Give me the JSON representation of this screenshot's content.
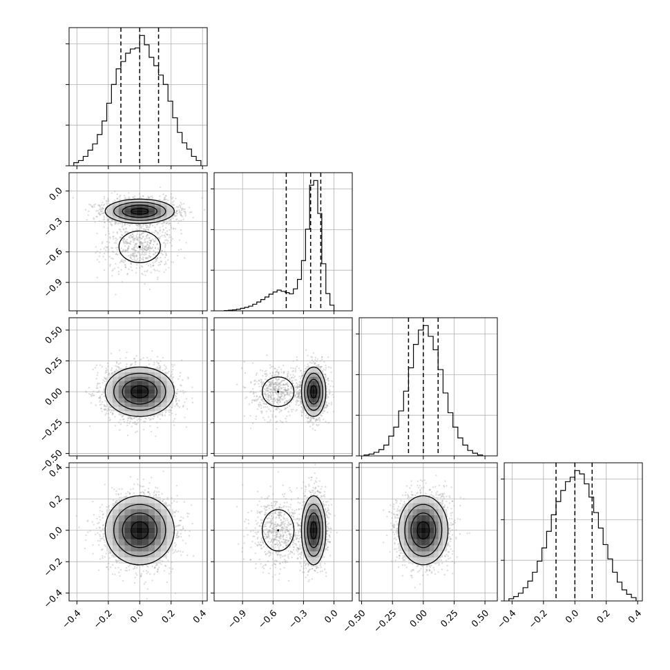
{
  "chart_data": {
    "type": "corner",
    "parameters": [
      {
        "xlim": [
          -0.45,
          0.43
        ],
        "ticks": [
          -0.4,
          -0.2,
          0.0,
          0.2,
          0.4
        ],
        "tick_labels": [
          "−0.4",
          "−0.2",
          "0.0",
          "0.2",
          "0.4"
        ],
        "quantiles": [
          -0.12,
          0.0,
          0.12
        ],
        "hist": {
          "edges": [
            -0.42,
            -0.39,
            -0.36,
            -0.33,
            -0.3,
            -0.27,
            -0.24,
            -0.21,
            -0.18,
            -0.15,
            -0.12,
            -0.09,
            -0.06,
            -0.03,
            0.0,
            0.03,
            0.06,
            0.09,
            0.12,
            0.15,
            0.18,
            0.21,
            0.24,
            0.27,
            0.3,
            0.33,
            0.36,
            0.39
          ],
          "counts": [
            3,
            5,
            9,
            15,
            21,
            30,
            43,
            60,
            78,
            93,
            100,
            108,
            112,
            113,
            125,
            116,
            104,
            96,
            87,
            78,
            62,
            46,
            32,
            22,
            16,
            9,
            5
          ]
        }
      },
      {
        "xlim": [
          -1.18,
          0.18
        ],
        "ticks": [
          -0.9,
          -0.6,
          -0.3,
          0.0
        ],
        "tick_labels": [
          "−0.9",
          "−0.6",
          "−0.3",
          "0.0"
        ],
        "quantiles": [
          -0.47,
          -0.23,
          -0.13
        ],
        "hist": {
          "edges": [
            -1.08,
            -1.04,
            -1.0,
            -0.96,
            -0.92,
            -0.88,
            -0.84,
            -0.8,
            -0.76,
            -0.72,
            -0.68,
            -0.64,
            -0.6,
            -0.56,
            -0.52,
            -0.48,
            -0.44,
            -0.4,
            -0.36,
            -0.32,
            -0.28,
            -0.24,
            -0.2,
            -0.16,
            -0.12,
            -0.08,
            -0.04,
            0.0
          ],
          "counts": [
            1,
            2,
            3,
            5,
            8,
            11,
            15,
            21,
            28,
            36,
            44,
            53,
            60,
            66,
            62,
            58,
            54,
            70,
            100,
            160,
            260,
            400,
            415,
            310,
            150,
            55,
            18
          ]
        }
      },
      {
        "xlim": [
          -0.52,
          0.6
        ],
        "ticks": [
          -0.5,
          -0.25,
          0.0,
          0.25,
          0.5
        ],
        "tick_labels": [
          "−0.50",
          "−0.25",
          "0.00",
          "0.25",
          "0.50"
        ],
        "quantiles": [
          -0.12,
          0.0,
          0.12
        ],
        "hist": {
          "edges": [
            -0.48,
            -0.44,
            -0.4,
            -0.36,
            -0.32,
            -0.28,
            -0.24,
            -0.2,
            -0.16,
            -0.12,
            -0.08,
            -0.04,
            0.0,
            0.04,
            0.08,
            0.12,
            0.16,
            0.2,
            0.24,
            0.28,
            0.32,
            0.36,
            0.4,
            0.44,
            0.48
          ],
          "counts": [
            1,
            2,
            4,
            7,
            12,
            22,
            32,
            50,
            72,
            98,
            124,
            140,
            145,
            133,
            118,
            96,
            70,
            48,
            32,
            20,
            12,
            6,
            3,
            1
          ]
        }
      },
      {
        "xlim": [
          -0.45,
          0.43
        ],
        "ticks": [
          -0.4,
          -0.2,
          0.0,
          0.2,
          0.4
        ],
        "tick_labels": [
          "−0.4",
          "−0.2",
          "0.0",
          "0.2",
          "0.4"
        ],
        "quantiles": [
          -0.12,
          0.0,
          0.11
        ],
        "hist": {
          "edges": [
            -0.42,
            -0.39,
            -0.36,
            -0.33,
            -0.3,
            -0.27,
            -0.24,
            -0.21,
            -0.18,
            -0.15,
            -0.12,
            -0.09,
            -0.06,
            -0.03,
            0.0,
            0.03,
            0.06,
            0.09,
            0.12,
            0.15,
            0.18,
            0.21,
            0.24,
            0.27,
            0.3,
            0.33,
            0.36,
            0.39
          ],
          "counts": [
            2,
            4,
            7,
            12,
            18,
            26,
            36,
            48,
            63,
            78,
            90,
            100,
            108,
            112,
            118,
            115,
            106,
            94,
            80,
            66,
            51,
            38,
            26,
            17,
            10,
            6,
            3
          ]
        }
      }
    ],
    "ylims": {
      "1": [
        -1.18,
        0.18
      ],
      "2": [
        -0.52,
        0.6
      ],
      "3": [
        -0.45,
        0.43
      ]
    },
    "grid": true,
    "levels_sigma": [
      0.5,
      1.0,
      1.5,
      2.0
    ]
  }
}
